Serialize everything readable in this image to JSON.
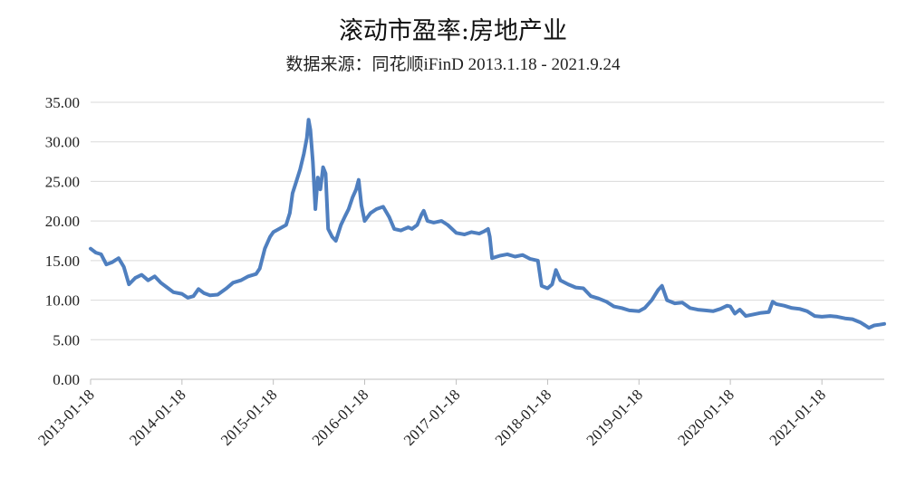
{
  "chart_data": {
    "type": "line",
    "title": "滚动市盈率:房地产业",
    "subtitle": "数据来源：同花顺iFinD 2013.1.18 - 2021.9.24",
    "ylim": [
      0,
      35
    ],
    "yticks": [
      "0.00",
      "5.00",
      "10.00",
      "15.00",
      "20.00",
      "25.00",
      "30.00",
      "35.00"
    ],
    "xticks": [
      "2013-01-18",
      "2014-01-18",
      "2015-01-18",
      "2016-01-18",
      "2017-01-18",
      "2018-01-18",
      "2019-01-18",
      "2020-01-18",
      "2021-01-18"
    ],
    "x_range": [
      "2013-01-18",
      "2021-09-24"
    ],
    "grid": true,
    "series_color": "#4f7fbf",
    "series": [
      {
        "points": [
          [
            "2013-01-18",
            16.5
          ],
          [
            "2013-02-08",
            16.0
          ],
          [
            "2013-03-01",
            15.8
          ],
          [
            "2013-03-22",
            14.5
          ],
          [
            "2013-04-15",
            14.8
          ],
          [
            "2013-05-10",
            15.3
          ],
          [
            "2013-05-31",
            14.2
          ],
          [
            "2013-06-20",
            12.0
          ],
          [
            "2013-07-15",
            12.8
          ],
          [
            "2013-08-10",
            13.2
          ],
          [
            "2013-09-05",
            12.5
          ],
          [
            "2013-10-01",
            13.0
          ],
          [
            "2013-10-25",
            12.2
          ],
          [
            "2013-11-20",
            11.6
          ],
          [
            "2013-12-15",
            11.0
          ],
          [
            "2014-01-18",
            10.8
          ],
          [
            "2014-02-10",
            10.3
          ],
          [
            "2014-03-05",
            10.5
          ],
          [
            "2014-03-25",
            11.4
          ],
          [
            "2014-04-15",
            10.9
          ],
          [
            "2014-05-10",
            10.6
          ],
          [
            "2014-06-10",
            10.7
          ],
          [
            "2014-07-15",
            11.5
          ],
          [
            "2014-08-10",
            12.2
          ],
          [
            "2014-09-10",
            12.5
          ],
          [
            "2014-10-10",
            13.0
          ],
          [
            "2014-11-10",
            13.3
          ],
          [
            "2014-11-25",
            14.0
          ],
          [
            "2014-12-15",
            16.5
          ],
          [
            "2015-01-05",
            18.0
          ],
          [
            "2015-01-18",
            18.6
          ],
          [
            "2015-02-10",
            19.0
          ],
          [
            "2015-03-10",
            19.5
          ],
          [
            "2015-03-25",
            21.0
          ],
          [
            "2015-04-05",
            23.5
          ],
          [
            "2015-04-20",
            25.0
          ],
          [
            "2015-05-05",
            26.5
          ],
          [
            "2015-05-20",
            28.5
          ],
          [
            "2015-06-01",
            30.5
          ],
          [
            "2015-06-08",
            32.8
          ],
          [
            "2015-06-15",
            31.5
          ],
          [
            "2015-06-25",
            27.5
          ],
          [
            "2015-07-05",
            21.5
          ],
          [
            "2015-07-15",
            25.5
          ],
          [
            "2015-07-25",
            24.0
          ],
          [
            "2015-08-05",
            26.8
          ],
          [
            "2015-08-15",
            26.0
          ],
          [
            "2015-08-25",
            19.0
          ],
          [
            "2015-09-10",
            18.0
          ],
          [
            "2015-09-25",
            17.5
          ],
          [
            "2015-10-15",
            19.5
          ],
          [
            "2015-10-30",
            20.5
          ],
          [
            "2015-11-15",
            21.5
          ],
          [
            "2015-12-01",
            23.0
          ],
          [
            "2015-12-15",
            24.0
          ],
          [
            "2015-12-25",
            25.2
          ],
          [
            "2016-01-05",
            22.0
          ],
          [
            "2016-01-18",
            20.0
          ],
          [
            "2016-02-10",
            21.0
          ],
          [
            "2016-03-05",
            21.5
          ],
          [
            "2016-04-01",
            21.8
          ],
          [
            "2016-04-25",
            20.5
          ],
          [
            "2016-05-15",
            19.0
          ],
          [
            "2016-06-10",
            18.8
          ],
          [
            "2016-07-10",
            19.2
          ],
          [
            "2016-07-25",
            19.0
          ],
          [
            "2016-08-15",
            19.5
          ],
          [
            "2016-09-01",
            20.8
          ],
          [
            "2016-09-10",
            21.3
          ],
          [
            "2016-09-25",
            20.0
          ],
          [
            "2016-10-20",
            19.8
          ],
          [
            "2016-11-20",
            20.0
          ],
          [
            "2016-12-15",
            19.5
          ],
          [
            "2017-01-18",
            18.5
          ],
          [
            "2017-02-20",
            18.3
          ],
          [
            "2017-03-20",
            18.6
          ],
          [
            "2017-04-20",
            18.4
          ],
          [
            "2017-05-10",
            18.7
          ],
          [
            "2017-05-25",
            19.0
          ],
          [
            "2017-06-01",
            18.0
          ],
          [
            "2017-06-10",
            15.3
          ],
          [
            "2017-07-10",
            15.6
          ],
          [
            "2017-08-10",
            15.8
          ],
          [
            "2017-09-10",
            15.5
          ],
          [
            "2017-10-10",
            15.7
          ],
          [
            "2017-11-10",
            15.2
          ],
          [
            "2017-12-10",
            15.0
          ],
          [
            "2017-12-25",
            11.8
          ],
          [
            "2018-01-18",
            11.5
          ],
          [
            "2018-02-05",
            12.0
          ],
          [
            "2018-02-20",
            13.8
          ],
          [
            "2018-03-10",
            12.5
          ],
          [
            "2018-04-10",
            12.0
          ],
          [
            "2018-05-10",
            11.6
          ],
          [
            "2018-06-10",
            11.5
          ],
          [
            "2018-07-10",
            10.5
          ],
          [
            "2018-08-10",
            10.2
          ],
          [
            "2018-09-10",
            9.8
          ],
          [
            "2018-10-10",
            9.2
          ],
          [
            "2018-11-10",
            9.0
          ],
          [
            "2018-12-10",
            8.7
          ],
          [
            "2019-01-18",
            8.6
          ],
          [
            "2019-02-10",
            9.0
          ],
          [
            "2019-03-10",
            10.0
          ],
          [
            "2019-04-05",
            11.3
          ],
          [
            "2019-04-20",
            11.8
          ],
          [
            "2019-05-10",
            10.0
          ],
          [
            "2019-06-10",
            9.6
          ],
          [
            "2019-07-10",
            9.7
          ],
          [
            "2019-08-10",
            9.0
          ],
          [
            "2019-09-10",
            8.8
          ],
          [
            "2019-10-10",
            8.7
          ],
          [
            "2019-11-10",
            8.6
          ],
          [
            "2019-12-10",
            8.9
          ],
          [
            "2020-01-05",
            9.3
          ],
          [
            "2020-01-18",
            9.2
          ],
          [
            "2020-02-05",
            8.3
          ],
          [
            "2020-02-25",
            8.8
          ],
          [
            "2020-03-20",
            8.0
          ],
          [
            "2020-04-20",
            8.2
          ],
          [
            "2020-05-20",
            8.4
          ],
          [
            "2020-06-20",
            8.5
          ],
          [
            "2020-07-05",
            9.8
          ],
          [
            "2020-07-20",
            9.5
          ],
          [
            "2020-08-20",
            9.3
          ],
          [
            "2020-09-20",
            9.0
          ],
          [
            "2020-10-20",
            8.9
          ],
          [
            "2020-11-20",
            8.6
          ],
          [
            "2020-12-20",
            8.0
          ],
          [
            "2021-01-18",
            7.9
          ],
          [
            "2021-02-20",
            8.0
          ],
          [
            "2021-03-20",
            7.9
          ],
          [
            "2021-04-20",
            7.7
          ],
          [
            "2021-05-20",
            7.6
          ],
          [
            "2021-06-20",
            7.2
          ],
          [
            "2021-07-10",
            6.8
          ],
          [
            "2021-07-25",
            6.5
          ],
          [
            "2021-08-15",
            6.8
          ],
          [
            "2021-09-05",
            6.9
          ],
          [
            "2021-09-24",
            7.0
          ]
        ]
      }
    ]
  }
}
